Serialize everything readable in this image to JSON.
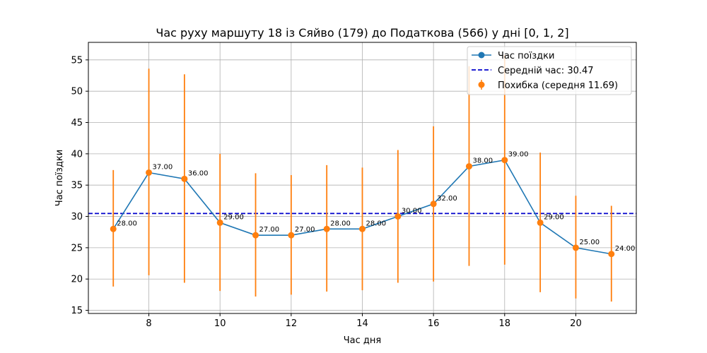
{
  "chart_data": {
    "type": "line",
    "title": "Час руху маршуту 18 із Сяйво (179) до Податкова (566) у дні [0, 1, 2]",
    "xlabel": "Час дня",
    "ylabel": "Час поїздки",
    "xlim": [
      6.3,
      21.7
    ],
    "ylim": [
      14.5,
      57.8
    ],
    "xticks": [
      8,
      10,
      12,
      14,
      16,
      18,
      20
    ],
    "yticks": [
      15,
      20,
      25,
      30,
      35,
      40,
      45,
      50,
      55
    ],
    "grid": true,
    "legend_position": "top-right",
    "x": [
      7,
      8,
      9,
      10,
      11,
      12,
      13,
      14,
      15,
      16,
      17,
      18,
      19,
      20,
      21
    ],
    "series": [
      {
        "name": "Час поїздки",
        "color": "#1f77b4",
        "values": [
          28,
          37,
          36,
          29,
          27,
          27,
          28,
          28,
          30,
          32,
          38,
          39,
          29,
          25,
          24
        ],
        "labels": [
          "28.00",
          "37.00",
          "36.00",
          "29.00",
          "27.00",
          "27.00",
          "28.00",
          "28.00",
          "30.00",
          "32.00",
          "38.00",
          "39.00",
          "29.00",
          "25.00",
          "24.00"
        ]
      }
    ],
    "error_bars": {
      "name": "Похибка (середня 11.69)",
      "color": "#ff7f0e",
      "lower": [
        18.8,
        20.6,
        19.4,
        18.1,
        17.2,
        17.5,
        18.0,
        18.2,
        19.4,
        19.6,
        22.1,
        22.3,
        17.9,
        16.9,
        16.4
      ],
      "upper": [
        37.4,
        53.6,
        52.7,
        40.0,
        36.9,
        36.6,
        38.2,
        37.8,
        40.6,
        44.4,
        54.0,
        55.8,
        40.2,
        33.3,
        31.7
      ]
    },
    "reference_line": {
      "name": "Середній час: 30.47",
      "value": 30.47,
      "color": "#0000cc",
      "style": "dashed"
    }
  }
}
